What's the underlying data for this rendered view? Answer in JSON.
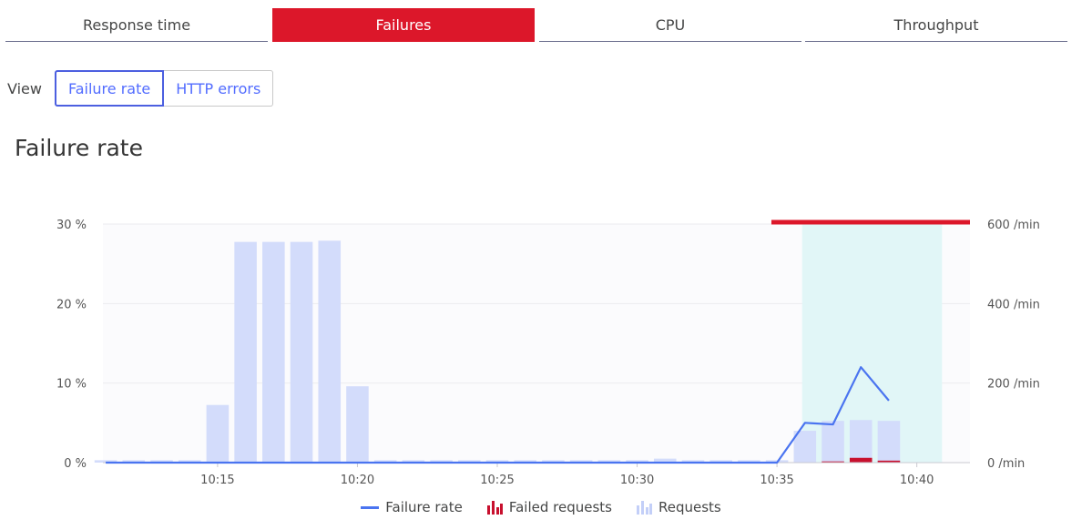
{
  "tabs": [
    {
      "label": "Response time",
      "active": false
    },
    {
      "label": "Failures",
      "active": true
    },
    {
      "label": "CPU",
      "active": false
    },
    {
      "label": "Throughput",
      "active": false
    }
  ],
  "view": {
    "label": "View",
    "options": [
      {
        "label": "Failure rate",
        "selected": true
      },
      {
        "label": "HTTP errors",
        "selected": false
      }
    ]
  },
  "section_title": "Failure rate",
  "colors": {
    "accent_red": "#dc172a",
    "failure_rate_line": "#4a74f0",
    "requests_bar": "#d3dcfb",
    "failed_bar": "#c8102e",
    "highlight_band": "#e1f6f7"
  },
  "chart_data": {
    "type": "bar",
    "x": [
      "10:11",
      "10:12",
      "10:13",
      "10:14",
      "10:15",
      "10:16",
      "10:17",
      "10:18",
      "10:19",
      "10:20",
      "10:21",
      "10:22",
      "10:23",
      "10:24",
      "10:25",
      "10:26",
      "10:27",
      "10:28",
      "10:29",
      "10:30",
      "10:31",
      "10:32",
      "10:33",
      "10:34",
      "10:35",
      "10:36",
      "10:37",
      "10:38",
      "10:39"
    ],
    "x_ticks": [
      "10:15",
      "10:20",
      "10:25",
      "10:30",
      "10:35",
      "10:40"
    ],
    "x_tick_values": [
      15,
      20,
      25,
      30,
      35,
      40
    ],
    "xlim": [
      10.9,
      41.9
    ],
    "left_axis": {
      "ticks": [
        "0 %",
        "10 %",
        "20 %",
        "30 %"
      ],
      "ylim": [
        0,
        30
      ]
    },
    "right_axis": {
      "ticks": [
        "0 /min",
        "200 /min",
        "400 /min",
        "600 /min"
      ],
      "ylim": [
        0,
        600
      ]
    },
    "series": [
      {
        "name": "Requests",
        "axis": "right",
        "values": [
          6,
          6,
          6,
          6,
          145,
          555,
          555,
          555,
          558,
          192,
          6,
          6,
          6,
          6,
          6,
          6,
          6,
          6,
          6,
          6,
          10,
          6,
          6,
          6,
          6,
          80,
          105,
          107,
          105
        ]
      },
      {
        "name": "Failed requests",
        "axis": "right",
        "values": [
          0,
          0,
          0,
          0,
          0,
          0,
          0,
          0,
          0,
          0,
          0,
          0,
          0,
          0,
          0,
          0,
          0,
          0,
          0,
          0,
          0,
          0,
          0,
          0,
          0,
          0,
          3,
          12,
          5
        ]
      },
      {
        "name": "Failure rate",
        "axis": "left",
        "type": "line",
        "values": [
          0,
          0,
          0,
          0,
          0,
          0,
          0,
          0,
          0,
          0,
          0,
          0,
          0,
          0,
          0,
          0,
          0,
          0,
          0,
          0,
          0,
          0,
          0,
          0,
          0,
          5,
          4.8,
          12,
          7.8
        ]
      }
    ],
    "highlight_range": [
      35.9,
      40.9
    ],
    "problem_marker_range": [
      34.8,
      41.9
    ],
    "grid": true,
    "legend": {
      "placement": "bottom-center",
      "items": [
        "Failure rate",
        "Failed requests",
        "Requests"
      ]
    }
  }
}
